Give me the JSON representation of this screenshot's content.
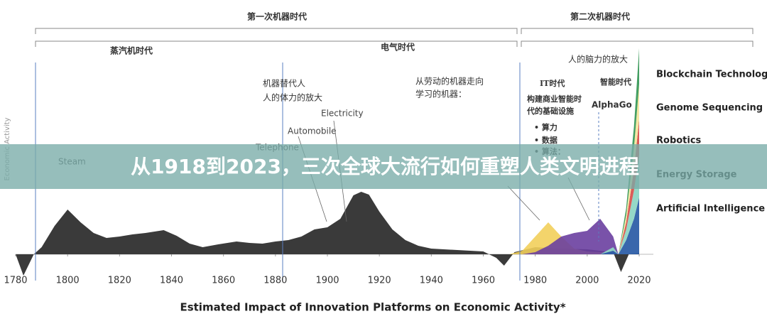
{
  "banner": "从1918到2023，三次全球大流行如何重塑人类文明进程",
  "chart_data": {
    "type": "area",
    "xlabel": "Estimated Impact of Innovation Platforms on Economic Activity*",
    "ylabel": "Economic Activity",
    "xlim": [
      1780,
      2020
    ],
    "xticks": [
      1780,
      1800,
      1820,
      1840,
      1860,
      1880,
      1900,
      1920,
      1940,
      1960,
      1980,
      2000,
      2020
    ],
    "ylim": [
      -3,
      29
    ],
    "eras": [
      "第一次机器时代",
      "第二次机器时代",
      "蒸汽机时代",
      "电气时代"
    ],
    "annotations": [
      "Steam",
      "Telephone",
      "Automobile",
      "Electricity",
      "机器替代人",
      "人的体力的放大",
      "从劳动的机器走向",
      "学习的机器：",
      "IT时代",
      "构建商业智能时",
      "代的基础设施",
      "• 算力",
      "• 数据",
      "• 算法：",
      "人的脑力的放大",
      "智能时代",
      "AlphaGo"
    ],
    "base": {
      "color": "#3a3a3a",
      "x": [
        1780,
        1783,
        1787,
        1790,
        1795,
        1800,
        1805,
        1810,
        1815,
        1820,
        1825,
        1830,
        1837,
        1842,
        1847,
        1852,
        1858,
        1865,
        1870,
        1875,
        1880,
        1885,
        1890,
        1895,
        1900,
        1905,
        1910,
        1913,
        1916,
        1920,
        1925,
        1930,
        1935,
        1940,
        1950,
        1960,
        1965,
        1968,
        1972,
        1980,
        1990,
        2000,
        2010,
        2013,
        2016,
        2020
      ],
      "values": [
        0,
        -3,
        0,
        1,
        4,
        6.3,
        4.5,
        3,
        2.3,
        2.5,
        2.8,
        3,
        3.4,
        2.6,
        1.5,
        1,
        1.4,
        1.8,
        1.6,
        1.5,
        1.8,
        2,
        2.5,
        3.5,
        3.8,
        5,
        8.3,
        8.8,
        8.4,
        6,
        3.5,
        2,
        1.2,
        0.8,
        0.6,
        0.4,
        -0.5,
        -1.6,
        0.3,
        1,
        0.8,
        0.7,
        0.3,
        -2.5,
        0,
        0.2
      ]
    },
    "x": [
      1970,
      1975,
      1980,
      1985,
      1990,
      1995,
      2000,
      2005,
      2010,
      2012,
      2015,
      2018,
      2020
    ],
    "layers": [
      {
        "color": "#f2cf5b",
        "values": [
          0,
          0.5,
          2.5,
          4.5,
          2.5,
          0.8,
          0.4,
          0.3,
          0.2,
          0,
          0,
          0,
          0
        ]
      },
      {
        "color": "#6a3fa0",
        "values": [
          0,
          0,
          0.3,
          1.2,
          2.5,
          3,
          3.3,
          5,
          2.5,
          0,
          0,
          0,
          0
        ]
      }
    ],
    "series": [
      {
        "name": "Artificial Intelligence",
        "color": "#2e5fa8",
        "values": [
          0,
          0,
          0,
          0,
          0,
          0,
          0,
          0,
          0.5,
          0,
          2,
          5,
          8
        ]
      },
      {
        "name": "Energy Storage",
        "color": "#8fd6c4",
        "values": [
          0,
          0,
          0,
          0,
          0,
          0,
          0,
          0,
          0.5,
          0,
          1.5,
          4,
          6
        ]
      },
      {
        "name": "Robotics",
        "color": "#d9534f",
        "values": [
          0,
          0,
          0,
          0,
          0,
          0,
          0,
          0,
          0,
          0,
          1,
          3,
          5
        ]
      },
      {
        "name": "Genome Sequencing",
        "color": "#f4e6a0",
        "values": [
          0,
          0,
          0,
          0,
          0,
          0,
          0,
          0,
          0,
          0,
          1,
          3,
          5
        ]
      },
      {
        "name": "Blockchain Technology",
        "color": "#3a9a5b",
        "values": [
          0,
          0,
          0,
          0,
          0,
          0,
          0,
          0,
          0,
          0,
          1,
          3,
          5
        ]
      }
    ]
  }
}
